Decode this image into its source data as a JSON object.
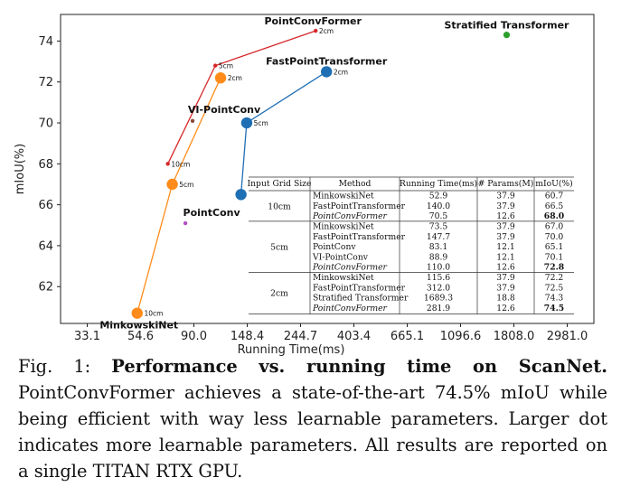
{
  "chart_data": {
    "type": "line",
    "xlabel": "Running Time(ms)",
    "ylabel": "mIoU(%)",
    "x_tick_labels": [
      "33.1",
      "54.6",
      "90.0",
      "148.4",
      "244.7",
      "403.4",
      "665.1",
      "1096.6",
      "1808.0",
      "2981.0"
    ],
    "x_scale": "log",
    "y_ticks": [
      62,
      64,
      66,
      68,
      70,
      72,
      74
    ],
    "ylim": [
      60.2,
      75.3
    ],
    "series": [
      {
        "name": "MinkowskiNet",
        "color": "#ff8c1a",
        "params_m": 37.9,
        "points": [
          {
            "x": 52.9,
            "y": 60.7,
            "size": "10cm"
          },
          {
            "x": 73.5,
            "y": 67.0,
            "size": "5cm"
          },
          {
            "x": 115.6,
            "y": 72.2,
            "size": "2cm"
          }
        ]
      },
      {
        "name": "FastPointTransformer",
        "color": "#1f6fb4",
        "params_m": 37.9,
        "points": [
          {
            "x": 140.0,
            "y": 66.5,
            "size": "10cm"
          },
          {
            "x": 147.7,
            "y": 70.0,
            "size": "5cm"
          },
          {
            "x": 312.0,
            "y": 72.5,
            "size": "2cm"
          }
        ]
      },
      {
        "name": "PointConvFormer",
        "color": "#d62728",
        "params_m": 12.6,
        "points": [
          {
            "x": 70.5,
            "y": 68.0,
            "size": "10cm"
          },
          {
            "x": 110.0,
            "y": 72.8,
            "size": "5cm"
          },
          {
            "x": 281.9,
            "y": 74.5,
            "size": "2cm"
          }
        ]
      },
      {
        "name": "PointConv",
        "color": "#b24fc4",
        "params_m": 12.1,
        "points": [
          {
            "x": 83.1,
            "y": 65.1
          }
        ]
      },
      {
        "name": "VI-PointConv",
        "color": "#8c4a3a",
        "params_m": 12.1,
        "points": [
          {
            "x": 88.9,
            "y": 70.1
          }
        ]
      },
      {
        "name": "Stratified Transformer",
        "color": "#2ca02c",
        "params_m": 18.8,
        "points": [
          {
            "x": 1689.3,
            "y": 74.3
          }
        ]
      }
    ]
  },
  "table": {
    "headers": [
      "Input Grid Size",
      "Method",
      "Running Time(ms)",
      "# Params(M)",
      "mIoU(%)"
    ],
    "groups": [
      {
        "grid": "10cm",
        "rows": [
          {
            "method": "MinkowskiNet",
            "time": "52.9",
            "params": "37.9",
            "miou": "60.7"
          },
          {
            "method": "FastPointTransformer",
            "time": "140.0",
            "params": "37.9",
            "miou": "66.5"
          },
          {
            "method": "PointConvFormer",
            "time": "70.5",
            "params": "12.6",
            "miou": "68.0"
          }
        ]
      },
      {
        "grid": "5cm",
        "rows": [
          {
            "method": "MinkowskiNet",
            "time": "73.5",
            "params": "37.9",
            "miou": "67.0"
          },
          {
            "method": "FastPointTransformer",
            "time": "147.7",
            "params": "37.9",
            "miou": "70.0"
          },
          {
            "method": "PointConv",
            "time": "83.1",
            "params": "12.1",
            "miou": "65.1"
          },
          {
            "method": "VI-PointConv",
            "time": "88.9",
            "params": "12.1",
            "miou": "70.1"
          },
          {
            "method": "PointConvFormer",
            "time": "110.0",
            "params": "12.6",
            "miou": "72.8"
          }
        ]
      },
      {
        "grid": "2cm",
        "rows": [
          {
            "method": "MinkowskiNet",
            "time": "115.6",
            "params": "37.9",
            "miou": "72.2"
          },
          {
            "method": "FastPointTransformer",
            "time": "312.0",
            "params": "37.9",
            "miou": "72.5"
          },
          {
            "method": "Stratified Transformer",
            "time": "1689.3",
            "params": "18.8",
            "miou": "74.3"
          },
          {
            "method": "PointConvFormer",
            "time": "281.9",
            "params": "12.6",
            "miou": "74.5"
          }
        ]
      }
    ]
  },
  "caption": {
    "fig_label": "Fig. 1:",
    "bold_title": "Performance vs. running time on ScanNet.",
    "body": "PointConvFormer achieves a state-of-the-art 74.5% mIoU while being efficient with way less learnable parameters. Larger dot indicates more learnable parameters. All results are reported on a single TITAN RTX GPU."
  }
}
